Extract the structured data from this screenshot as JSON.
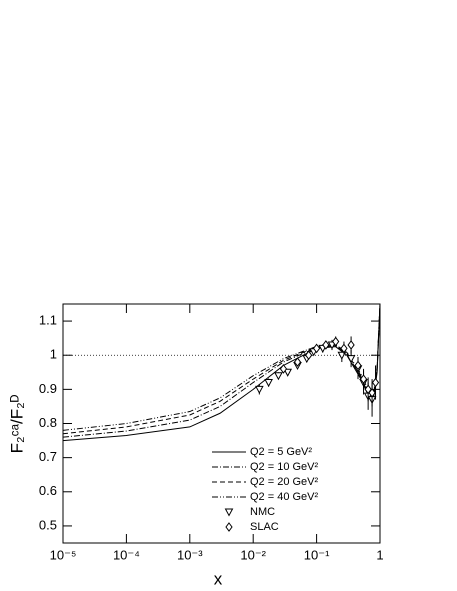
{
  "chart_data": {
    "type": "line",
    "xlabel": "x",
    "ylabel": "F₂ᶜᵃ/F₂ᴰ",
    "xscale": "log",
    "xlim": [
      1e-05,
      1
    ],
    "ylim": [
      0.45,
      1.15
    ],
    "xticks": [
      {
        "value": 1e-05,
        "label": "10⁻⁵"
      },
      {
        "value": 0.0001,
        "label": "10⁻⁴"
      },
      {
        "value": 0.001,
        "label": "10⁻³"
      },
      {
        "value": 0.01,
        "label": "10⁻²"
      },
      {
        "value": 0.1,
        "label": "10⁻¹"
      },
      1
    ],
    "yticks": [
      0.5,
      0.6,
      0.7,
      0.8,
      0.9,
      1,
      1.1
    ],
    "reference_line": 1,
    "series": [
      {
        "name": "Q2 = 5 GeV²",
        "color": "#000000",
        "dash": "none",
        "x": [
          1e-05,
          0.0001,
          0.001,
          0.003,
          0.01,
          0.03,
          0.1,
          0.2,
          0.3,
          0.5,
          0.7,
          0.8,
          0.9,
          1
        ],
        "values": [
          0.75,
          0.765,
          0.79,
          0.83,
          0.9,
          0.97,
          1.02,
          1.025,
          1.0,
          0.93,
          0.87,
          0.88,
          0.95,
          1.15
        ]
      },
      {
        "name": "Q2 = 10 GeV²",
        "color": "#000000",
        "dash": "6 2 1 2",
        "x": [
          1e-05,
          0.0001,
          0.001,
          0.003,
          0.01,
          0.03,
          0.1,
          0.2,
          0.3,
          0.5,
          0.7,
          0.8,
          0.9,
          1
        ],
        "values": [
          0.76,
          0.778,
          0.81,
          0.85,
          0.92,
          0.98,
          1.022,
          1.027,
          1.005,
          0.935,
          0.875,
          0.885,
          0.955,
          1.15
        ]
      },
      {
        "name": "Q2 = 20 GeV²",
        "color": "#000000",
        "dash": "5 3",
        "x": [
          1e-05,
          0.0001,
          0.001,
          0.003,
          0.01,
          0.03,
          0.1,
          0.2,
          0.3,
          0.5,
          0.7,
          0.8,
          0.9,
          1
        ],
        "values": [
          0.77,
          0.79,
          0.825,
          0.865,
          0.93,
          0.985,
          1.024,
          1.028,
          1.008,
          0.94,
          0.88,
          0.89,
          0.96,
          1.15
        ]
      },
      {
        "name": "Q2 = 40 GeV²",
        "color": "#000000",
        "dash": "6 2 1 2 1 2",
        "x": [
          1e-05,
          0.0001,
          0.001,
          0.003,
          0.01,
          0.03,
          0.1,
          0.2,
          0.3,
          0.5,
          0.7,
          0.8,
          0.9,
          1
        ],
        "values": [
          0.78,
          0.8,
          0.835,
          0.875,
          0.94,
          0.99,
          1.026,
          1.03,
          1.01,
          0.945,
          0.885,
          0.895,
          0.965,
          1.15
        ]
      },
      {
        "name": "NMC",
        "color": "#000000",
        "marker": "triangle",
        "x": [
          0.0125,
          0.0175,
          0.025,
          0.035,
          0.05,
          0.07,
          0.09,
          0.125,
          0.175,
          0.25,
          0.35,
          0.45,
          0.55,
          0.65,
          0.75
        ],
        "values": [
          0.9,
          0.92,
          0.94,
          0.95,
          0.97,
          0.99,
          1.01,
          1.02,
          1.03,
          1.0,
          0.99,
          0.96,
          0.92,
          0.88,
          0.87
        ],
        "errors": [
          0.015,
          0.012,
          0.01,
          0.01,
          0.01,
          0.01,
          0.01,
          0.012,
          0.015,
          0.02,
          0.025,
          0.03,
          0.035,
          0.04,
          0.05
        ]
      },
      {
        "name": "SLAC",
        "color": "#000000",
        "marker": "diamond",
        "x": [
          0.03,
          0.05,
          0.075,
          0.1,
          0.14,
          0.2,
          0.27,
          0.35,
          0.45,
          0.55,
          0.65,
          0.75,
          0.85
        ],
        "values": [
          0.96,
          0.98,
          1.0,
          1.02,
          1.03,
          1.04,
          1.02,
          1.03,
          0.97,
          0.93,
          0.9,
          0.89,
          0.92
        ],
        "errors": [
          0.01,
          0.01,
          0.01,
          0.012,
          0.012,
          0.015,
          0.02,
          0.025,
          0.025,
          0.03,
          0.035,
          0.04,
          0.05
        ]
      }
    ]
  }
}
